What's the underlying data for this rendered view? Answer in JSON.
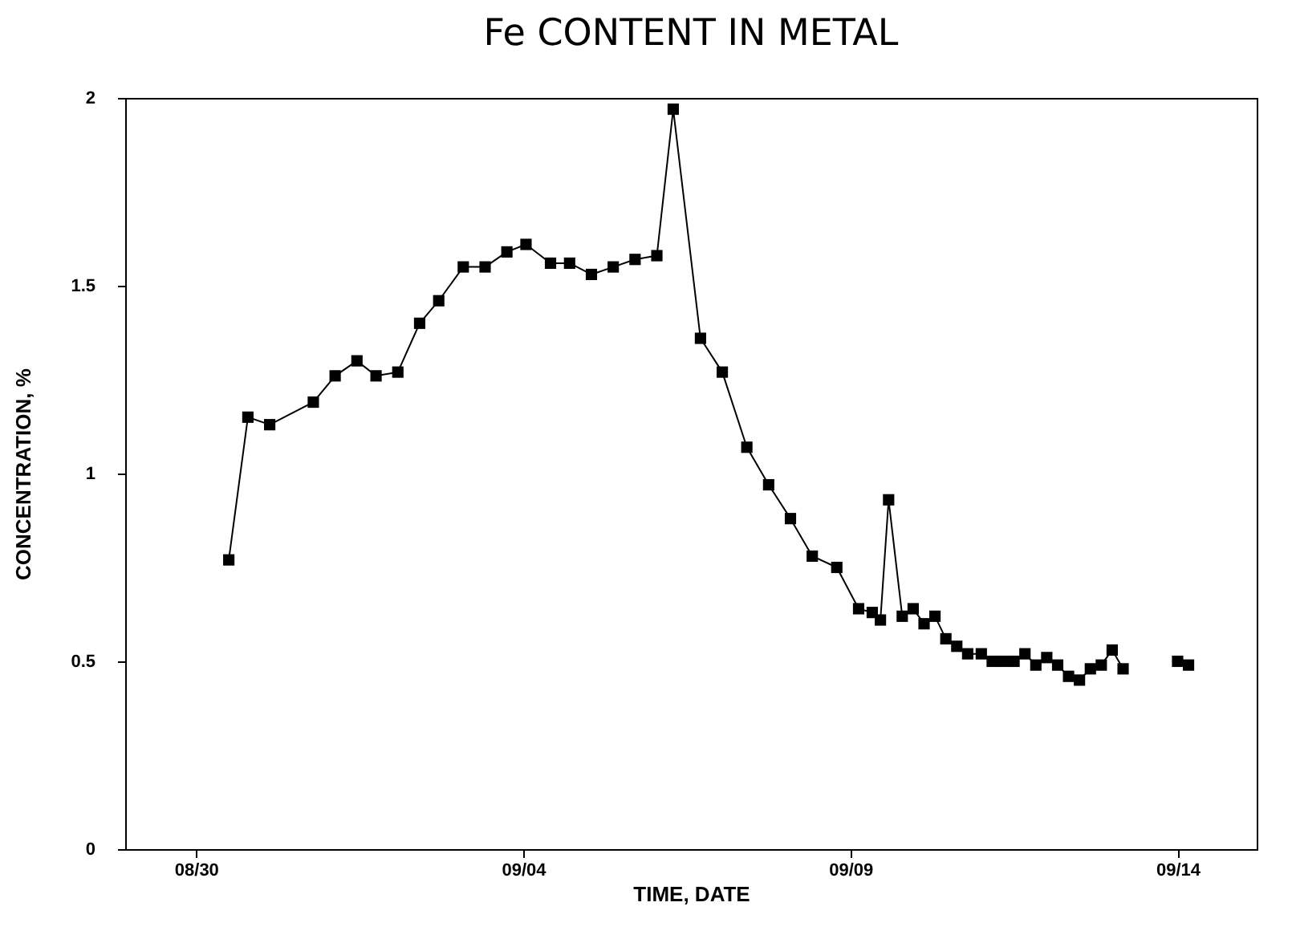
{
  "chart_data": {
    "type": "line",
    "title": "Fe CONTENT IN METAL",
    "xlabel": "TIME, DATE",
    "ylabel": "CONCENTRATION, %",
    "x": [
      "--08-30T12:00",
      "--08-30T19:00",
      "--08-31T03:00",
      "--08-31T19:00",
      "--09-01T03:00",
      "--09-01T11:00",
      "--09-01T18:00",
      "--09-02T02:00",
      "--09-02T10:00",
      "--09-02T17:00",
      "--09-03T02:00",
      "--09-03T10:00",
      "--09-03T18:00",
      "--09-04T01:00",
      "--09-04T10:00",
      "--09-04T17:00",
      "--09-05T01:00",
      "--09-05T09:00",
      "--09-05T17:00",
      "--09-06T01:00",
      "--09-06T07:00",
      "--09-06T17:00",
      "--09-07T01:00",
      "--09-07T10:00",
      "--09-07T18:00",
      "--09-08T02:00",
      "--09-08T10:00",
      "--09-08T19:00",
      "--09-09T03:00",
      "--09-09T08:00",
      "--09-09T11:00",
      "--09-09T14:00",
      "--09-09T19:00",
      "--09-09T23:00",
      "--09-10T03:00",
      "--09-10T07:00",
      "--09-10T11:00",
      "--09-10T15:00",
      "--09-10T19:00",
      "--09-11T00:00",
      "--09-11T04:00",
      "--09-11T08:00",
      "--09-11T12:00",
      "--09-11T16:00",
      "--09-11T20:00",
      "--09-12T00:00",
      "--09-12T04:00",
      "--09-12T08:00",
      "--09-12T12:00",
      "--09-12T16:00",
      "--09-12T20:00",
      "--09-13T00:00",
      "--09-13T04:00",
      "--09-13T14:00",
      "--09-14T00:00",
      "--09-14T04:00"
    ],
    "series": [
      {
        "color": "#000000",
        "values": [
          0.77,
          1.15,
          1.13,
          1.19,
          1.26,
          1.3,
          1.26,
          1.27,
          1.4,
          1.46,
          1.55,
          1.55,
          1.59,
          1.61,
          1.56,
          1.56,
          1.53,
          1.55,
          1.57,
          1.58,
          1.97,
          1.36,
          1.27,
          1.07,
          0.97,
          0.88,
          0.78,
          0.75,
          0.64,
          0.63,
          0.61,
          0.93,
          0.62,
          0.64,
          0.6,
          0.62,
          0.56,
          0.54,
          0.52,
          0.52,
          0.5,
          0.5,
          0.5,
          0.52,
          0.49,
          0.51,
          0.49,
          0.46,
          0.45,
          0.48,
          0.49,
          0.53,
          0.48,
          null,
          0.5,
          0.49
        ]
      }
    ],
    "xlim": [
      "--08-28T22:00",
      "--09-15T05:00"
    ],
    "ylim": [
      0,
      2
    ],
    "xticks": [
      {
        "value": "--08-30",
        "label": "08/30"
      },
      {
        "value": "--09-04",
        "label": "09/04"
      },
      {
        "value": "--09-09",
        "label": "09/09"
      },
      {
        "value": "--09-14",
        "label": "09/14"
      }
    ],
    "yticks": [
      0,
      0.5,
      1,
      1.5,
      2
    ],
    "marker": "square",
    "line_style": "solid"
  }
}
